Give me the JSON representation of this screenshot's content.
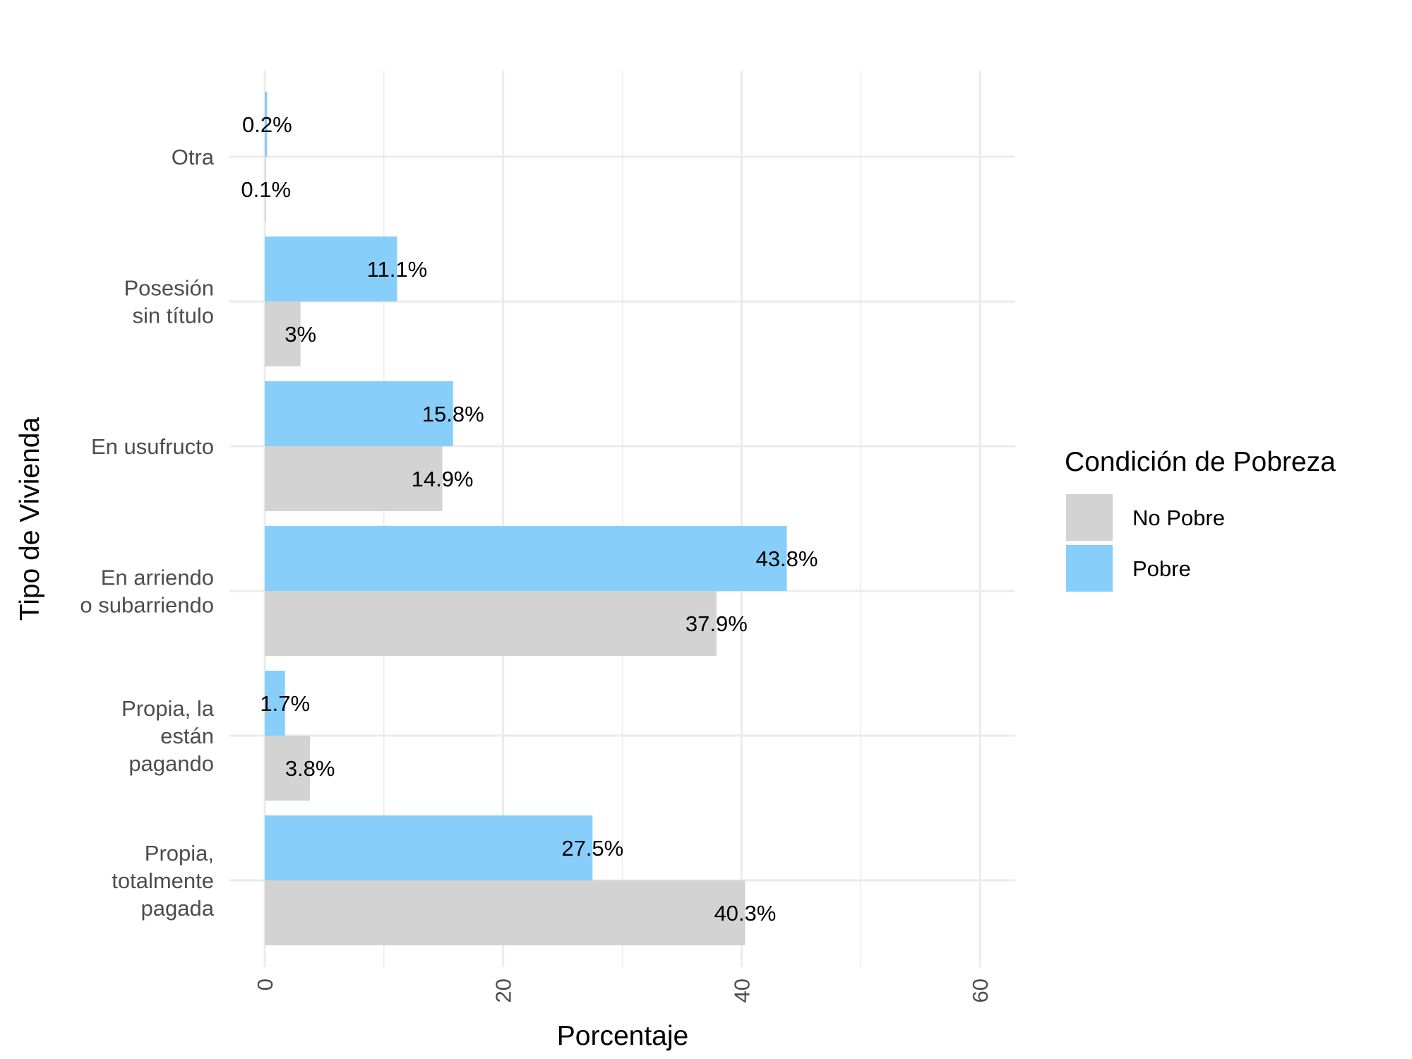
{
  "chart_data": {
    "type": "bar",
    "orientation": "horizontal",
    "categories": [
      [
        "Otra"
      ],
      [
        "Posesión",
        "sin título"
      ],
      [
        "En usufructo"
      ],
      [
        "En arriendo",
        "o subarriendo"
      ],
      [
        "Propia, la",
        "están",
        "pagando"
      ],
      [
        "Propia,",
        "totalmente",
        "pagada"
      ]
    ],
    "series": [
      {
        "name": "Pobre",
        "color": "#87CEFA",
        "values": [
          0.2,
          11.1,
          15.8,
          43.8,
          1.7,
          27.5
        ],
        "labels": [
          "0.2%",
          "11.1%",
          "15.8%",
          "43.8%",
          "1.7%",
          "27.5%"
        ]
      },
      {
        "name": "No Pobre",
        "color": "#D3D3D3",
        "values": [
          0.1,
          3,
          14.9,
          37.9,
          3.8,
          40.3
        ],
        "labels": [
          "0.1%",
          "3%",
          "14.9%",
          "37.9%",
          "3.8%",
          "40.3%"
        ]
      }
    ],
    "xlabel": "Porcentaje",
    "ylabel": "Tipo de Vivienda",
    "xlim": [
      0,
      60
    ],
    "xticks": [
      0,
      20,
      40,
      60
    ],
    "grid": true,
    "legend": {
      "title": "Condición de Pobreza",
      "placement": "right",
      "entries": [
        {
          "name": "No Pobre",
          "color": "#D3D3D3"
        },
        {
          "name": "Pobre",
          "color": "#87CEFA"
        }
      ]
    }
  }
}
